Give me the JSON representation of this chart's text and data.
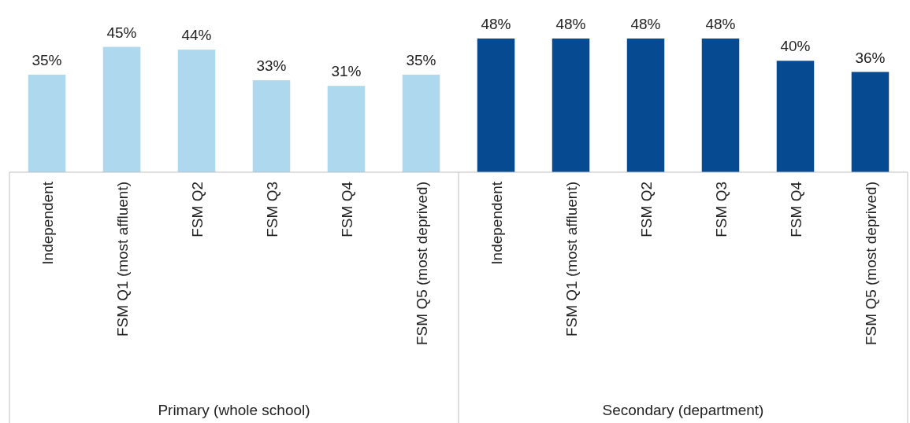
{
  "chart_data": {
    "type": "bar",
    "categories": [
      "Independent",
      "FSM Q1 (most affluent)",
      "FSM Q2",
      "FSM Q3",
      "FSM Q4",
      "FSM Q5 (most deprived)",
      "Independent",
      "FSM Q1 (most affluent)",
      "FSM Q2",
      "FSM Q3",
      "FSM Q4",
      "FSM Q5 (most deprived)"
    ],
    "values": [
      35,
      45,
      44,
      33,
      31,
      35,
      48,
      48,
      48,
      48,
      40,
      36
    ],
    "colors": [
      "#add8ee",
      "#add8ee",
      "#add8ee",
      "#add8ee",
      "#add8ee",
      "#add8ee",
      "#064a91",
      "#064a91",
      "#064a91",
      "#064a91",
      "#064a91",
      "#064a91"
    ],
    "value_labels": [
      "35%",
      "45%",
      "44%",
      "33%",
      "31%",
      "35%",
      "48%",
      "48%",
      "48%",
      "48%",
      "40%",
      "36%"
    ],
    "annotations": [
      "Primary (whole school)",
      "Secondary (department)"
    ]
  }
}
